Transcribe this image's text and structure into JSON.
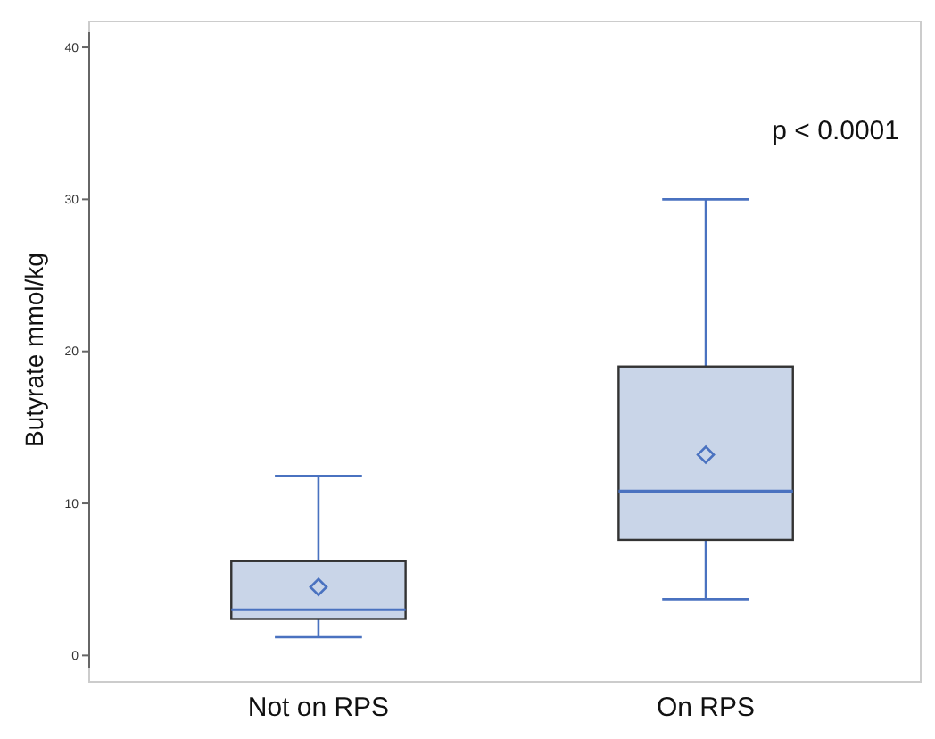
{
  "chart_data": {
    "type": "box",
    "ylabel": "Butyrate mmol/kg",
    "categories": [
      "Not on RPS",
      "On RPS"
    ],
    "boxes": [
      {
        "low": 1.2,
        "q1": 2.4,
        "median": 3.0,
        "q3": 6.2,
        "high": 11.8,
        "mean": 4.5
      },
      {
        "low": 3.7,
        "q1": 7.6,
        "median": 10.8,
        "q3": 19.0,
        "high": 30.0,
        "mean": 13.2
      }
    ],
    "color": "#c9d5e8",
    "ylim": [
      -0.8,
      41
    ],
    "yticks": [
      0,
      10,
      20,
      30,
      40
    ],
    "grid": false,
    "marker": "diamond",
    "annotations": [
      "p < 0.0001"
    ]
  }
}
